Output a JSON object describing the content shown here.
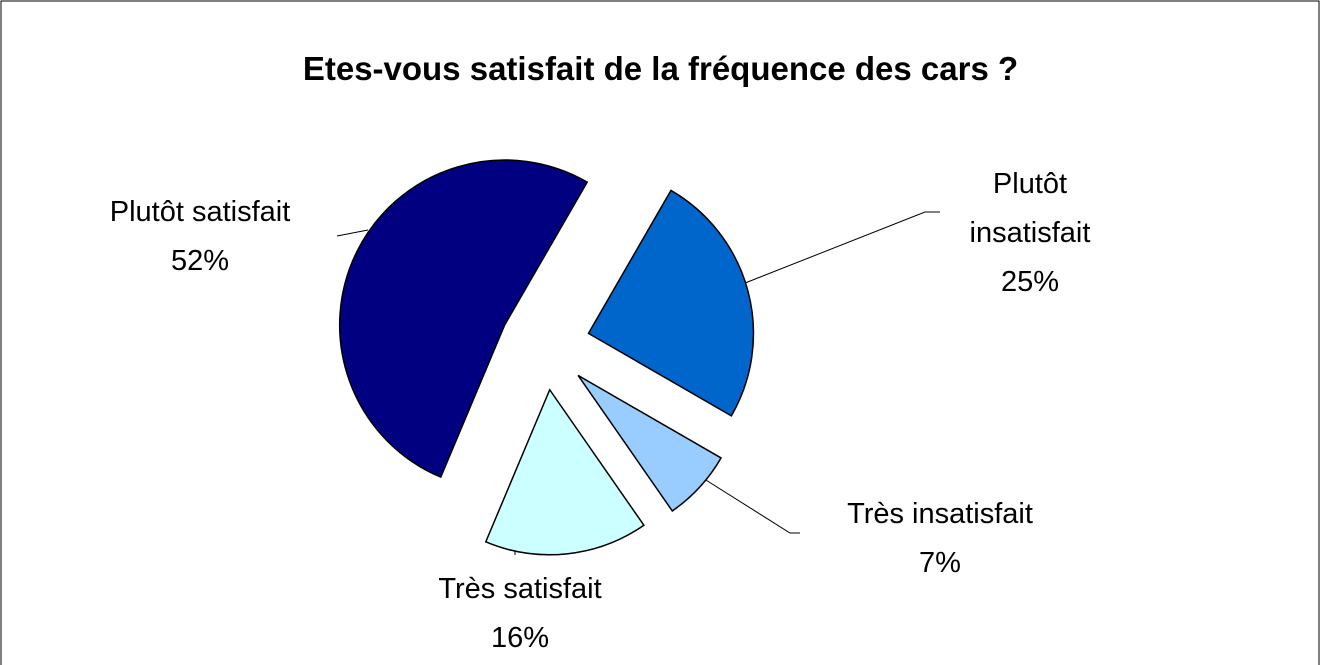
{
  "chart_data": {
    "type": "pie",
    "title": "Etes-vous satisfait de la fréquence des cars ?",
    "categories": [
      "Plutôt insatisfait",
      "Très insatisfait",
      "Très satisfait",
      "Plutôt satisfait"
    ],
    "values": [
      25,
      7,
      16,
      52
    ],
    "value_labels": [
      "25%",
      "7%",
      "16%",
      "52%"
    ],
    "colors": [
      "#0066cc",
      "#99ccff",
      "#ccffff",
      "#000080"
    ]
  }
}
